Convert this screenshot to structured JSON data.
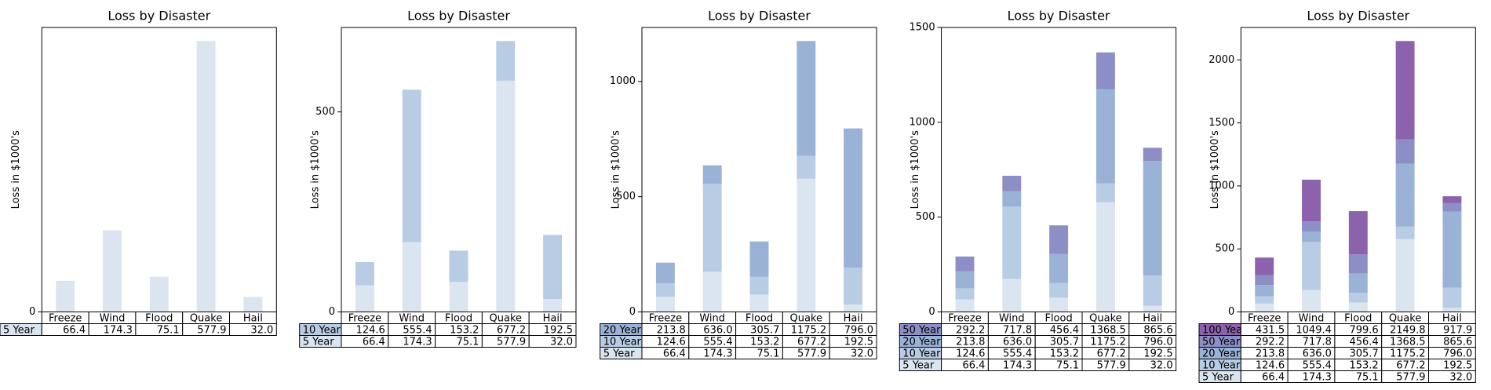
{
  "chart_data": [
    {
      "type": "bar",
      "title": "Loss by Disaster",
      "y_label": "Loss in $1000's",
      "categories": [
        "Freeze",
        "Wind",
        "Flood",
        "Quake",
        "Hail"
      ],
      "series": [
        {
          "name": "5 Year",
          "color": "#dae5f0",
          "values": [
            66.4,
            174.3,
            75.1,
            577.9,
            32.0
          ],
          "value_labels": [
            "66.4",
            "174.3",
            "75.1",
            "577.9",
            "32.0"
          ]
        }
      ],
      "ylim": [
        0,
        606.8
      ],
      "yticks": [
        0
      ]
    },
    {
      "type": "bar",
      "title": "Loss by Disaster",
      "y_label": "Loss in $1000's",
      "categories": [
        "Freeze",
        "Wind",
        "Flood",
        "Quake",
        "Hail"
      ],
      "series": [
        {
          "name": "10 Year",
          "color": "#b8cce4",
          "values": [
            124.6,
            555.4,
            153.2,
            677.2,
            192.5
          ],
          "value_labels": [
            "124.6",
            "555.4",
            "153.2",
            "677.2",
            "192.5"
          ]
        },
        {
          "name": "5 Year",
          "color": "#dae5f0",
          "values": [
            66.4,
            174.3,
            75.1,
            577.9,
            32.0
          ],
          "value_labels": [
            "66.4",
            "174.3",
            "75.1",
            "577.9",
            "32.0"
          ]
        }
      ],
      "ylim": [
        0,
        711.1
      ],
      "yticks": [
        0,
        500
      ]
    },
    {
      "type": "bar",
      "title": "Loss by Disaster",
      "y_label": "Loss in $1000's",
      "categories": [
        "Freeze",
        "Wind",
        "Flood",
        "Quake",
        "Hail"
      ],
      "series": [
        {
          "name": "20 Year",
          "color": "#9ab2d6",
          "values": [
            213.8,
            636.0,
            305.7,
            1175.2,
            796.0
          ],
          "value_labels": [
            "213.8",
            "636.0",
            "305.7",
            "1175.2",
            "796.0"
          ]
        },
        {
          "name": "10 Year",
          "color": "#b8cce4",
          "values": [
            124.6,
            555.4,
            153.2,
            677.2,
            192.5
          ],
          "value_labels": [
            "124.6",
            "555.4",
            "153.2",
            "677.2",
            "192.5"
          ]
        },
        {
          "name": "5 Year",
          "color": "#dae5f0",
          "values": [
            66.4,
            174.3,
            75.1,
            577.9,
            32.0
          ],
          "value_labels": [
            "66.4",
            "174.3",
            "75.1",
            "577.9",
            "32.0"
          ]
        }
      ],
      "ylim": [
        0,
        1234
      ],
      "yticks": [
        0,
        500,
        1000
      ]
    },
    {
      "type": "bar",
      "title": "Loss by Disaster",
      "y_label": "Loss in $1000's",
      "categories": [
        "Freeze",
        "Wind",
        "Flood",
        "Quake",
        "Hail"
      ],
      "series": [
        {
          "name": "50 Year",
          "color": "#8d8ec5",
          "values": [
            292.2,
            717.8,
            456.4,
            1368.5,
            865.6
          ],
          "value_labels": [
            "292.2",
            "717.8",
            "456.4",
            "1368.5",
            "865.6"
          ]
        },
        {
          "name": "20 Year",
          "color": "#9ab2d6",
          "values": [
            213.8,
            636.0,
            305.7,
            1175.2,
            796.0
          ],
          "value_labels": [
            "213.8",
            "636.0",
            "305.7",
            "1175.2",
            "796.0"
          ]
        },
        {
          "name": "10 Year",
          "color": "#b8cce4",
          "values": [
            124.6,
            555.4,
            153.2,
            677.2,
            192.5
          ],
          "value_labels": [
            "124.6",
            "555.4",
            "153.2",
            "677.2",
            "192.5"
          ]
        },
        {
          "name": "5 Year",
          "color": "#dae5f0",
          "values": [
            66.4,
            174.3,
            75.1,
            577.9,
            32.0
          ],
          "value_labels": [
            "66.4",
            "174.3",
            "75.1",
            "577.9",
            "32.0"
          ]
        }
      ],
      "ylim": [
        0,
        1500
      ],
      "yticks": [
        0,
        500,
        1000,
        1500
      ]
    },
    {
      "type": "bar",
      "title": "Loss by Disaster",
      "y_label": "Loss in $1000's",
      "categories": [
        "Freeze",
        "Wind",
        "Flood",
        "Quake",
        "Hail"
      ],
      "series": [
        {
          "name": "100 Year",
          "color": "#8c62ad",
          "values": [
            431.5,
            1049.4,
            799.6,
            2149.8,
            917.9
          ],
          "value_labels": [
            "431.5",
            "1049.4",
            "799.6",
            "2149.8",
            "917.9"
          ]
        },
        {
          "name": "50 Year",
          "color": "#8d8ec5",
          "values": [
            292.2,
            717.8,
            456.4,
            1368.5,
            865.6
          ],
          "value_labels": [
            "292.2",
            "717.8",
            "456.4",
            "1368.5",
            "865.6"
          ]
        },
        {
          "name": "20 Year",
          "color": "#9ab2d6",
          "values": [
            213.8,
            636.0,
            305.7,
            1175.2,
            796.0
          ],
          "value_labels": [
            "213.8",
            "636.0",
            "305.7",
            "1175.2",
            "796.0"
          ]
        },
        {
          "name": "10 Year",
          "color": "#b8cce4",
          "values": [
            124.6,
            555.4,
            153.2,
            677.2,
            192.5
          ],
          "value_labels": [
            "124.6",
            "555.4",
            "153.2",
            "677.2",
            "192.5"
          ]
        },
        {
          "name": "5 Year",
          "color": "#dae5f0",
          "values": [
            66.4,
            174.3,
            75.1,
            577.9,
            32.0
          ],
          "value_labels": [
            "66.4",
            "174.3",
            "75.1",
            "577.9",
            "32.0"
          ]
        }
      ],
      "ylim": [
        0,
        2257.3
      ],
      "yticks": [
        0,
        500,
        1000,
        1500,
        2000
      ]
    }
  ]
}
